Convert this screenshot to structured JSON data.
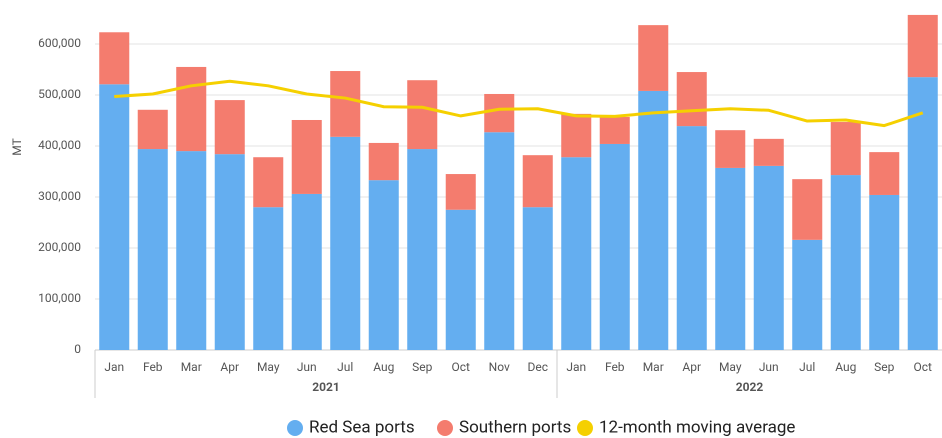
{
  "chart_data": {
    "type": "bar",
    "stacked": true,
    "ylabel": "MT",
    "categories": [
      "Jan",
      "Feb",
      "Mar",
      "Apr",
      "May",
      "Jun",
      "Jul",
      "Aug",
      "Sep",
      "Oct",
      "Nov",
      "Dec",
      "Jan",
      "Feb",
      "Mar",
      "Apr",
      "May",
      "Jun",
      "Jul",
      "Aug",
      "Sep",
      "Oct"
    ],
    "groups": [
      {
        "label": "2021",
        "count": 12
      },
      {
        "label": "2022",
        "count": 10
      }
    ],
    "series": [
      {
        "name": "Red Sea ports",
        "color": "#64aef0",
        "kind": "bar",
        "values": [
          521000,
          394000,
          390000,
          384000,
          280000,
          306000,
          418000,
          333000,
          394000,
          275000,
          427000,
          280000,
          378000,
          404000,
          508000,
          439000,
          357000,
          361000,
          216000,
          343000,
          304000,
          535000
        ]
      },
      {
        "name": "Southern ports",
        "color": "#f47c6e",
        "kind": "bar",
        "values": [
          102000,
          77000,
          165000,
          106000,
          98000,
          145000,
          129000,
          73000,
          135000,
          70000,
          75000,
          102000,
          85000,
          53000,
          129000,
          106000,
          74000,
          53000,
          119000,
          104000,
          84000,
          122000
        ]
      },
      {
        "name": "12-month moving average",
        "color": "#f5d000",
        "kind": "line",
        "values": [
          497000,
          502000,
          518000,
          527000,
          518000,
          502000,
          494000,
          477000,
          476000,
          459000,
          472000,
          473000,
          459000,
          458000,
          465000,
          469000,
          473000,
          470000,
          449000,
          451000,
          440000,
          465000
        ]
      }
    ],
    "ylim": [
      0,
      660000
    ],
    "yticks": [
      {
        "value": 0,
        "label": "0"
      },
      {
        "value": 100000,
        "label": "100,000"
      },
      {
        "value": 200000,
        "label": "200,000"
      },
      {
        "value": 300000,
        "label": "300,000"
      },
      {
        "value": 400000,
        "label": "400,000"
      },
      {
        "value": 500000,
        "label": "500,000"
      },
      {
        "value": 600000,
        "label": "600,000"
      }
    ],
    "grid": true,
    "legend": "bottom"
  }
}
